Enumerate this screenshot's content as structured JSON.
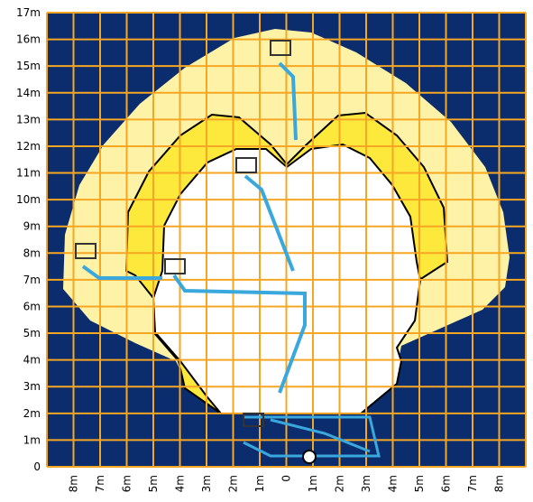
{
  "y_axis": {
    "labels": [
      "17m",
      "16m",
      "15m",
      "14m",
      "13m",
      "12m",
      "11m",
      "10m",
      "9m",
      "8m",
      "7m",
      "6m",
      "5m",
      "4m",
      "3m",
      "2m",
      "1m",
      "0"
    ]
  },
  "x_axis": {
    "labels": [
      "8m",
      "7m",
      "6m",
      "5m",
      "4m",
      "3m",
      "2m",
      "1m",
      "0",
      "1m",
      "2m",
      "3m",
      "4m",
      "5m",
      "6m",
      "7m",
      "8m"
    ]
  }
}
